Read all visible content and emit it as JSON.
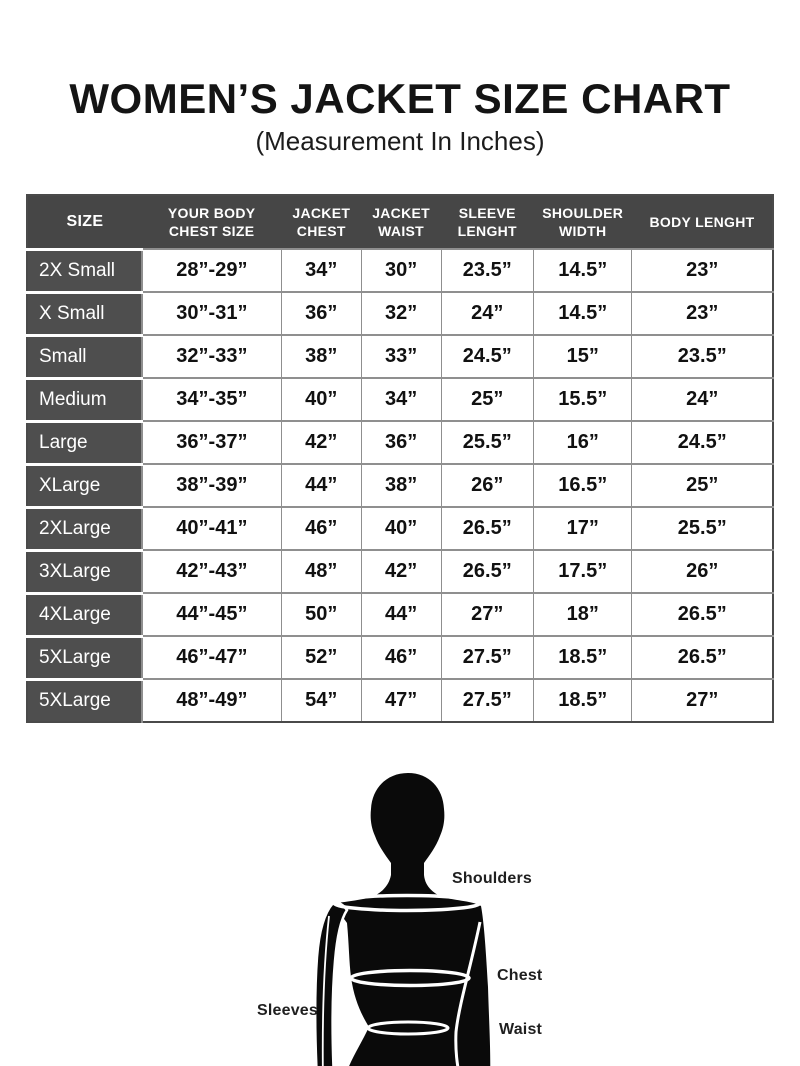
{
  "page": {
    "title": "WOMEN’S JACKET SIZE CHART",
    "subtitle": "(Measurement In Inches)"
  },
  "table": {
    "columns": [
      "SIZE",
      "YOUR BODY CHEST SIZE",
      "JACKET CHEST",
      "JACKET WAIST",
      "SLEEVE LENGHT",
      "SHOULDER WIDTH",
      "BODY LENGHT"
    ],
    "rows": [
      [
        "2X Small",
        "28”-29”",
        "34”",
        "30”",
        "23.5”",
        "14.5”",
        "23”"
      ],
      [
        "X Small",
        "30”-31”",
        "36”",
        "32”",
        "24”",
        "14.5”",
        "23”"
      ],
      [
        "Small",
        "32”-33”",
        "38”",
        "33”",
        "24.5”",
        "15”",
        "23.5”"
      ],
      [
        "Medium",
        "34”-35”",
        "40”",
        "34”",
        "25”",
        "15.5”",
        "24”"
      ],
      [
        "Large",
        "36”-37”",
        "42”",
        "36”",
        "25.5”",
        "16”",
        "24.5”"
      ],
      [
        "XLarge",
        "38”-39”",
        "44”",
        "38”",
        "26”",
        "16.5”",
        "25”"
      ],
      [
        "2XLarge",
        "40”-41”",
        "46”",
        "40”",
        "26.5”",
        "17”",
        "25.5”"
      ],
      [
        "3XLarge",
        "42”-43”",
        "48”",
        "42”",
        "26.5”",
        "17.5”",
        "26”"
      ],
      [
        "4XLarge",
        "44”-45”",
        "50”",
        "44”",
        "27”",
        "18”",
        "26.5”"
      ],
      [
        "5XLarge",
        "46”-47”",
        "52”",
        "46”",
        "27.5”",
        "18.5”",
        "26.5”"
      ],
      [
        "5XLarge",
        "48”-49”",
        "54”",
        "47”",
        "27.5”",
        "18.5”",
        "27”"
      ]
    ]
  },
  "diagram": {
    "silhouette": "woman-back-silhouette",
    "labels": {
      "shoulders": "Shoulders",
      "chest": "Chest",
      "sleeves": "Sleeves",
      "waist": "Waist"
    }
  },
  "colors": {
    "page_bg": "#ffffff",
    "header_bg": "#464646",
    "size_column_bg": "#4e4e4e",
    "grid_line": "#8f8f8f",
    "table_border": "#4a4a4a",
    "text_dark": "#111111",
    "text_light": "#ffffff",
    "silhouette": "#0a0a0a"
  }
}
